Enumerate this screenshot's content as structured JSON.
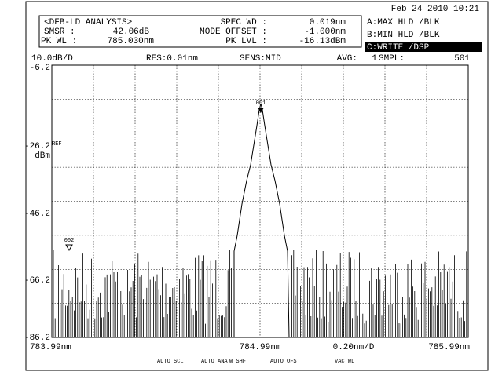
{
  "header": {
    "date": "Feb 24 2010 10:21"
  },
  "analysis": {
    "title": "<DFB-LD ANALYSIS>",
    "rows": [
      [
        "SPEC WD :",
        "0.019nm"
      ],
      [
        "SMSR :",
        "42.06dB",
        "MODE OFFSET :",
        "-1.000nm"
      ],
      [
        "PK WL :",
        "785.030nm",
        "PK LVL :",
        "-16.13dBm"
      ]
    ]
  },
  "traces": [
    "A:MAX HLD /BLK",
    "B:MIN HLD /BLK",
    "C:WRITE /DSP"
  ],
  "settings": [
    "10.0dB/D",
    "RES:0.01nm",
    "SENS:MID",
    "AVG:",
    "1",
    "SMPL:",
    "501"
  ],
  "y_axis": {
    "labels": [
      "-6.2",
      "-26.2",
      "-46.2",
      "-66.2",
      "-86.2"
    ],
    "ref": "REF",
    "unit": "dBm"
  },
  "x_axis": {
    "labels": [
      "783.99nm",
      "784.99nm",
      "0.20nm/D",
      "785.99nm"
    ]
  },
  "markers": [
    "001",
    "002"
  ],
  "softkeys": [
    "AUTO SCL",
    "AUTO ANA",
    "W SHF",
    "AUTO OFS",
    "VAC WL"
  ]
}
